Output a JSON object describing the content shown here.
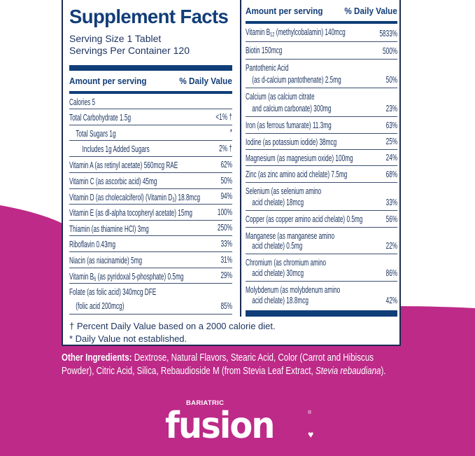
{
  "colors": {
    "brand_magenta": "#bd2a88",
    "navy": "#123d78",
    "text": "#1d3561"
  },
  "label": {
    "title": "Supplement Facts",
    "serving_size": "Serving Size 1 Tablet",
    "servings_per_container": "Servings Per Container 120",
    "amount_header": "Amount per serving",
    "dv_header": "% Daily Value",
    "left_rows": [
      {
        "pre": "Calories 5",
        "dv": "",
        "h": 22,
        "indent": 0
      },
      {
        "pre": "Total Carbohydrate 1.5g",
        "dv": "<1% †",
        "h": 23,
        "indent": 0
      },
      {
        "pre": "Total Sugars 1g",
        "dv": "*",
        "h": 22,
        "indent": 1
      },
      {
        "pre": "Includes 1g Added Sugars",
        "dv": "2% †",
        "h": 23,
        "indent": 2
      },
      {
        "pre": "Vitamin A (as retinyl acetate) 560mcg RAE",
        "dv": "62%",
        "h": 23,
        "indent": 0
      },
      {
        "pre": "Vitamin C (as ascorbic acid) 45mg",
        "dv": "50%",
        "h": 23,
        "indent": 0
      },
      {
        "pre": "Vitamin D (as cholecalciferol) (Vitamin D",
        "sub": "3",
        "post": ") 18.8mcg",
        "dv": "94%",
        "h": 22,
        "indent": 0
      },
      {
        "pre": "Vitamin E (as dl-alpha tocopheryl acetate) 15mg",
        "dv": "100%",
        "h": 23,
        "indent": 0
      },
      {
        "pre": "Thiamin (as thiamine HCl) 3mg",
        "dv": "250%",
        "h": 22,
        "indent": 0
      },
      {
        "pre": "Riboflavin 0.43mg",
        "dv": "33%",
        "h": 23,
        "indent": 0
      },
      {
        "pre": "Niacin (as niacinamide) 5mg",
        "dv": "31%",
        "h": 23,
        "indent": 0
      },
      {
        "pre": "Vitamin B",
        "sub": "6",
        "post": " (as pyridoxal 5-phosphate) 0.5mg",
        "dv": "29%",
        "h": 22,
        "indent": 0
      },
      {
        "pre": "Folate (as folic acid) 340mcg DFE",
        "line2": "(folic acid 200mcg)",
        "dv": "85%",
        "h": 44,
        "indent": 0
      }
    ],
    "right_rows": [
      {
        "pre": "Vitamin B",
        "sub": "12",
        "post": " (methylcobalamin) 140mcg",
        "dv": "5833%",
        "h": 26
      },
      {
        "pre": "Biotin 150mcg",
        "dv": "500%",
        "h": 25
      },
      {
        "pre": "Pantothenic Acid",
        "line2": "(as d-calcium pantothenate) 2.5mg",
        "dv": "50%",
        "h": 41
      },
      {
        "pre": "Calcium (as calcium citrate",
        "line2": "and calcium carbonate) 300mg",
        "dv": "23%",
        "h": 41
      },
      {
        "pre": "Iron (as ferrous fumarate) 11.3mg",
        "dv": "63%",
        "h": 24
      },
      {
        "pre": "Iodine (as potassium iodide) 38mcg",
        "dv": "25%",
        "h": 23
      },
      {
        "pre": "Magnesium (as magnesium oxide) 100mg",
        "dv": "24%",
        "h": 23
      },
      {
        "pre": "Zinc (as zinc amino acid chelate) 7.5mg",
        "dv": "68%",
        "h": 24
      },
      {
        "pre": "Selenium (as selenium amino",
        "line2": "acid chelate) 18mcg",
        "dv": "33%",
        "h": 40
      },
      {
        "pre": "Copper (as copper amino acid chelate) 0.5mg",
        "dv": "56%",
        "h": 24
      },
      {
        "pre": "Manganese (as manganese amino",
        "line2": "acid chelate) 0.5mg",
        "dv": "22%",
        "h": 38
      },
      {
        "pre": "Chromium (as chromium amino",
        "line2": "acid chelate) 30mcg",
        "dv": "86%",
        "h": 39
      },
      {
        "pre": "Molybdenum (as molybdenum amino",
        "line2": "acid chelate) 18.8mcg",
        "dv": "42%",
        "h": 38
      }
    ],
    "footnote_1": "† Percent Daily Value based on a 2000 calorie diet.",
    "footnote_2": "* Daily Value not established."
  },
  "ingredients": {
    "label": "Other Ingredients:",
    "text": " Dextrose, Natural Flavors, Stearic Acid, Color (Carrot and Hibiscus Powder), Citric Acid, Silica, Rebaudioside M (from Stevia Leaf Extract, ",
    "italic": "Stevia rebaudiana",
    "end": ")."
  },
  "logo": {
    "top": "BARIATRIC",
    "main": "fusion",
    "reg": "®",
    "heart": "♥"
  }
}
